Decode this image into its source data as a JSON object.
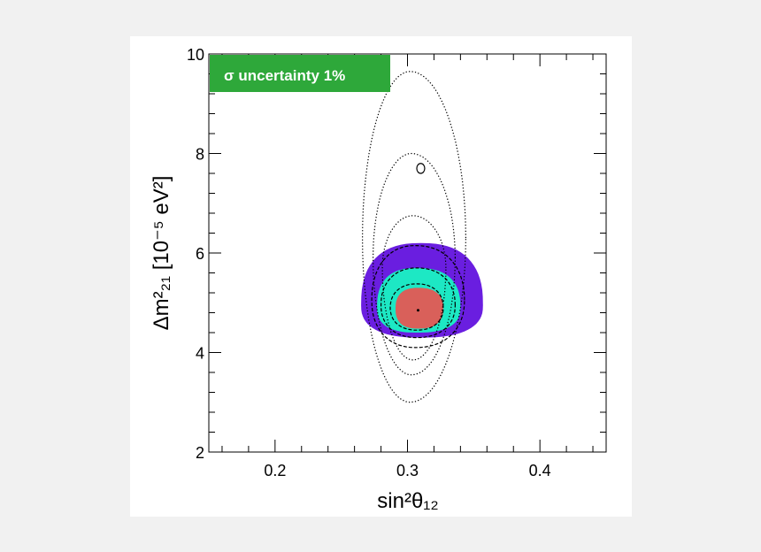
{
  "chart_data": {
    "type": "contour",
    "xlabel": "sin²θ₁₂",
    "ylabel": "Δm²₂₁ [10⁻⁵ eV²]",
    "xlim": [
      0.15,
      0.45
    ],
    "ylim": [
      2,
      10
    ],
    "x_ticks": [
      {
        "value": 0.2,
        "label": "0.2"
      },
      {
        "value": 0.3,
        "label": "0.3"
      },
      {
        "value": 0.4,
        "label": "0.4"
      }
    ],
    "y_ticks": [
      {
        "value": 2,
        "label": "2"
      },
      {
        "value": 4,
        "label": "4"
      },
      {
        "value": 6,
        "label": "6"
      },
      {
        "value": 8,
        "label": "8"
      },
      {
        "value": 10,
        "label": "10"
      }
    ],
    "annotation": "σ uncertainty 1%",
    "best_fit": {
      "x": 0.308,
      "y": 4.85
    },
    "filled_regions": [
      {
        "level": "outer",
        "color": "#6a1ee0",
        "cx": 0.31,
        "cy": 4.95,
        "dx_left": 0.045,
        "dx_right": 0.047,
        "dy_top": 1.25,
        "dy_bottom": 0.65
      },
      {
        "level": "middle",
        "color": "#1de8c4",
        "cx": 0.307,
        "cy": 4.9,
        "dx_left": 0.03,
        "dx_right": 0.033,
        "dy_top": 0.8,
        "dy_bottom": 0.5
      },
      {
        "level": "inner",
        "color": "#d9605a",
        "cx": 0.308,
        "cy": 4.88,
        "dx_left": 0.017,
        "dx_right": 0.019,
        "dy_top": 0.42,
        "dy_bottom": 0.4
      }
    ],
    "dashed_contours": [
      {
        "cx": 0.307,
        "cy": 4.9,
        "dx_left": 0.02,
        "dx_right": 0.02,
        "dy_top": 0.48,
        "dy_bottom": 0.45
      },
      {
        "cx": 0.307,
        "cy": 4.95,
        "dx_left": 0.027,
        "dx_right": 0.029,
        "dy_top": 0.75,
        "dy_bottom": 0.65
      },
      {
        "cx": 0.306,
        "cy": 5.05,
        "dx_left": 0.033,
        "dx_right": 0.037,
        "dy_top": 1.1,
        "dy_bottom": 0.95
      }
    ],
    "dotted_contours": [
      {
        "cx": 0.304,
        "cy": 5.7,
        "dx_left": 0.023,
        "dx_right": 0.025,
        "dy_top": 1.05,
        "dy_bottom": 1.85
      },
      {
        "cx": 0.303,
        "cy": 5.9,
        "dx_left": 0.029,
        "dx_right": 0.033,
        "dy_top": 2.1,
        "dy_bottom": 2.35
      },
      {
        "cx": 0.302,
        "cy": 6.3,
        "dx_left": 0.036,
        "dx_right": 0.042,
        "dy_top": 3.35,
        "dy_bottom": 3.3
      }
    ],
    "small_island": {
      "cx": 0.31,
      "cy": 7.7,
      "dx": 0.003,
      "dy": 0.1
    },
    "colors": {
      "badge": "#2ea83a",
      "background": "#f1f1f1",
      "plot_background": "#ffffff"
    }
  }
}
